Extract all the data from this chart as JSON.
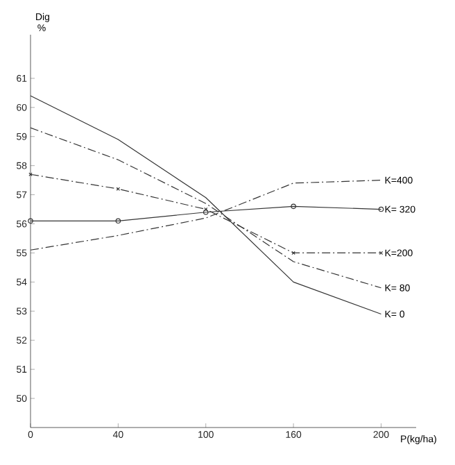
{
  "chart_data": {
    "type": "line",
    "ylabel": "Dig %",
    "xlabel": "P(kg/ha)",
    "categories": [
      "0",
      "40",
      "100",
      "160",
      "200"
    ],
    "ylim": [
      49,
      62.5
    ],
    "yticks": [
      50,
      51,
      52,
      53,
      54,
      55,
      56,
      57,
      58,
      59,
      60,
      61
    ],
    "series": [
      {
        "color": "#333333",
        "line_style": "dashed",
        "marker": "none",
        "values": [
          55.1,
          55.6,
          56.2,
          57.4,
          57.5
        ]
      },
      {
        "color": "#333333",
        "line_style": "solid",
        "marker": "circle",
        "values": [
          56.1,
          56.1,
          56.4,
          56.6,
          56.5
        ]
      },
      {
        "color": "#333333",
        "line_style": "dashed",
        "marker": "cross",
        "values": [
          57.7,
          57.2,
          56.5,
          55.0,
          55.0
        ]
      },
      {
        "color": "#333333",
        "line_style": "dashed",
        "marker": "none",
        "values": [
          59.3,
          58.2,
          56.7,
          54.7,
          53.8
        ]
      },
      {
        "color": "#333333",
        "line_style": "solid",
        "marker": "none",
        "values": [
          60.4,
          58.9,
          56.9,
          54.0,
          52.9
        ]
      }
    ],
    "annotations": [
      {
        "text": "K=400",
        "x": "200",
        "y": 57.5
      },
      {
        "text": "K= 320",
        "x": "200",
        "y": 56.5
      },
      {
        "text": "K=200",
        "x": "200",
        "y": 55.0
      },
      {
        "text": "K= 80",
        "x": "200",
        "y": 53.8
      },
      {
        "text": "K= 0",
        "x": "200",
        "y": 52.9
      }
    ]
  }
}
